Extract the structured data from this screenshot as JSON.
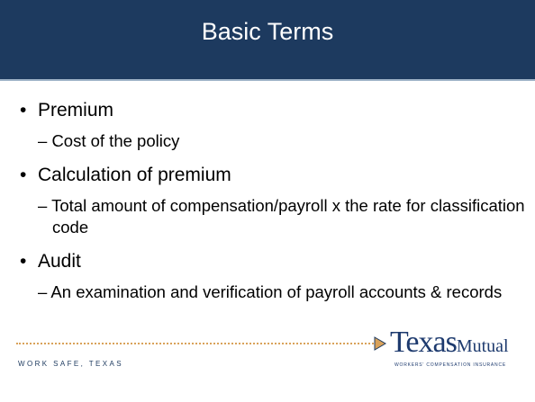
{
  "header": {
    "title": "Basic Terms"
  },
  "bullets": [
    {
      "text": "Premium",
      "subs": [
        "Cost of the policy"
      ]
    },
    {
      "text": "Calculation of premium",
      "subs": [
        "Total amount of compensation/payroll x the rate for classification code"
      ]
    },
    {
      "text": "Audit",
      "subs": [
        "An examination and verification of payroll accounts & records"
      ]
    }
  ],
  "footer": {
    "tagline": "WORK SAFE, TEXAS",
    "logo_first": "Texas",
    "logo_second": "Mutual",
    "logo_subtitle": "WORKERS' COMPENSATION INSURANCE"
  }
}
